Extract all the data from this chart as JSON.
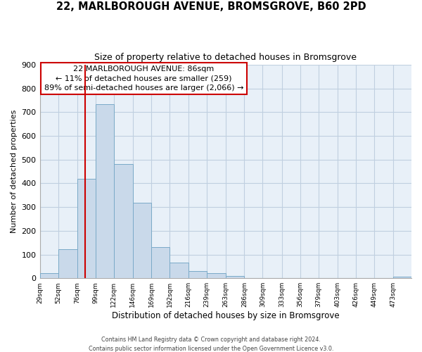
{
  "title": "22, MARLBOROUGH AVENUE, BROMSGROVE, B60 2PD",
  "subtitle": "Size of property relative to detached houses in Bromsgrove",
  "xlabel": "Distribution of detached houses by size in Bromsgrove",
  "ylabel": "Number of detached properties",
  "bin_edges": [
    29,
    52,
    76,
    99,
    122,
    146,
    169,
    192,
    216,
    239,
    263,
    286,
    309,
    333,
    356,
    379,
    403,
    426,
    449,
    473,
    496
  ],
  "bar_heights": [
    22,
    122,
    420,
    733,
    481,
    318,
    132,
    65,
    30,
    22,
    10,
    0,
    0,
    0,
    0,
    0,
    0,
    0,
    0,
    8
  ],
  "bar_color": "#c9d9ea",
  "bar_edge_color": "#7aaac8",
  "property_line_x": 86,
  "property_line_color": "#cc0000",
  "ylim": [
    0,
    900
  ],
  "yticks": [
    0,
    100,
    200,
    300,
    400,
    500,
    600,
    700,
    800,
    900
  ],
  "annotation_title": "22 MARLBOROUGH AVENUE: 86sqm",
  "annotation_line1": "← 11% of detached houses are smaller (259)",
  "annotation_line2": "89% of semi-detached houses are larger (2,066) →",
  "annotation_box_color": "#ffffff",
  "annotation_box_edge": "#cc0000",
  "footer1": "Contains HM Land Registry data © Crown copyright and database right 2024.",
  "footer2": "Contains public sector information licensed under the Open Government Licence v3.0.",
  "background_color": "#ffffff",
  "plot_bg_color": "#e8f0f8",
  "grid_color": "#c0cfe0"
}
